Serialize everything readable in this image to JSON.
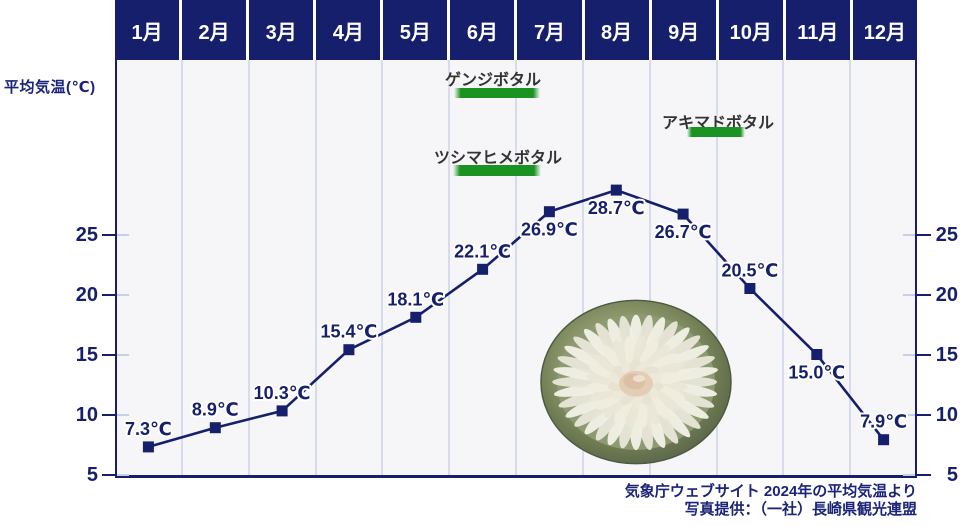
{
  "axis": {
    "ylabel": "平均気温(℃)",
    "yticks": [
      5,
      10,
      15,
      20,
      25
    ]
  },
  "header": {
    "months": [
      "1月",
      "2月",
      "3月",
      "4月",
      "5月",
      "6月",
      "7月",
      "8月",
      "9月",
      "10月",
      "11月",
      "12月"
    ]
  },
  "chart_data": {
    "type": "line",
    "title": "",
    "categories": [
      "1月",
      "2月",
      "3月",
      "4月",
      "5月",
      "6月",
      "7月",
      "8月",
      "9月",
      "10月",
      "11月",
      "12月"
    ],
    "series": [
      {
        "name": "平均気温(℃)",
        "values": [
          7.3,
          8.9,
          10.3,
          15.4,
          18.1,
          22.1,
          26.9,
          28.7,
          26.7,
          20.5,
          15.0,
          7.9
        ]
      }
    ],
    "point_labels": [
      "7.3℃",
      "8.9℃",
      "10.3℃",
      "15.4℃",
      "18.1℃",
      "22.1℃",
      "26.9℃",
      "28.7℃",
      "26.7℃",
      "20.5℃",
      "15.0℃",
      "7.9℃"
    ],
    "label_positions": [
      "above",
      "above",
      "above",
      "above",
      "above",
      "above",
      "below",
      "below",
      "below",
      "above",
      "below",
      "above"
    ],
    "unit": "℃",
    "ylabel": "平均気温(℃)",
    "yticks": [
      5,
      10,
      15,
      20,
      25
    ],
    "ylim": [
      5,
      39.5
    ],
    "grid": "vertical-month-lines",
    "legend": "none",
    "marker": "square"
  },
  "annotations": {
    "fireflies": [
      {
        "label": "ゲンジボタル",
        "season": "6月〜7月上旬"
      },
      {
        "label": "アキマドボタル",
        "season": "9月中旬〜10月中旬"
      },
      {
        "label": "ツシマヒメボタル",
        "season": "6月〜7月上旬"
      }
    ]
  },
  "photo": {
    "name": "fugu-sashimi-plate"
  },
  "credits": {
    "line1": "気象庁ウェブサイト 2024年の平均気温より",
    "line2": "写真提供：（一社）長崎県観光連盟"
  },
  "colors": {
    "navy": "#151f6b",
    "plot_bg": "#f6f6f9",
    "gridline": "#d7dbee",
    "green": "#1b9322",
    "annotation_text": "#333333",
    "month_text": "#ffffff",
    "label_halo": "#ffffff"
  }
}
